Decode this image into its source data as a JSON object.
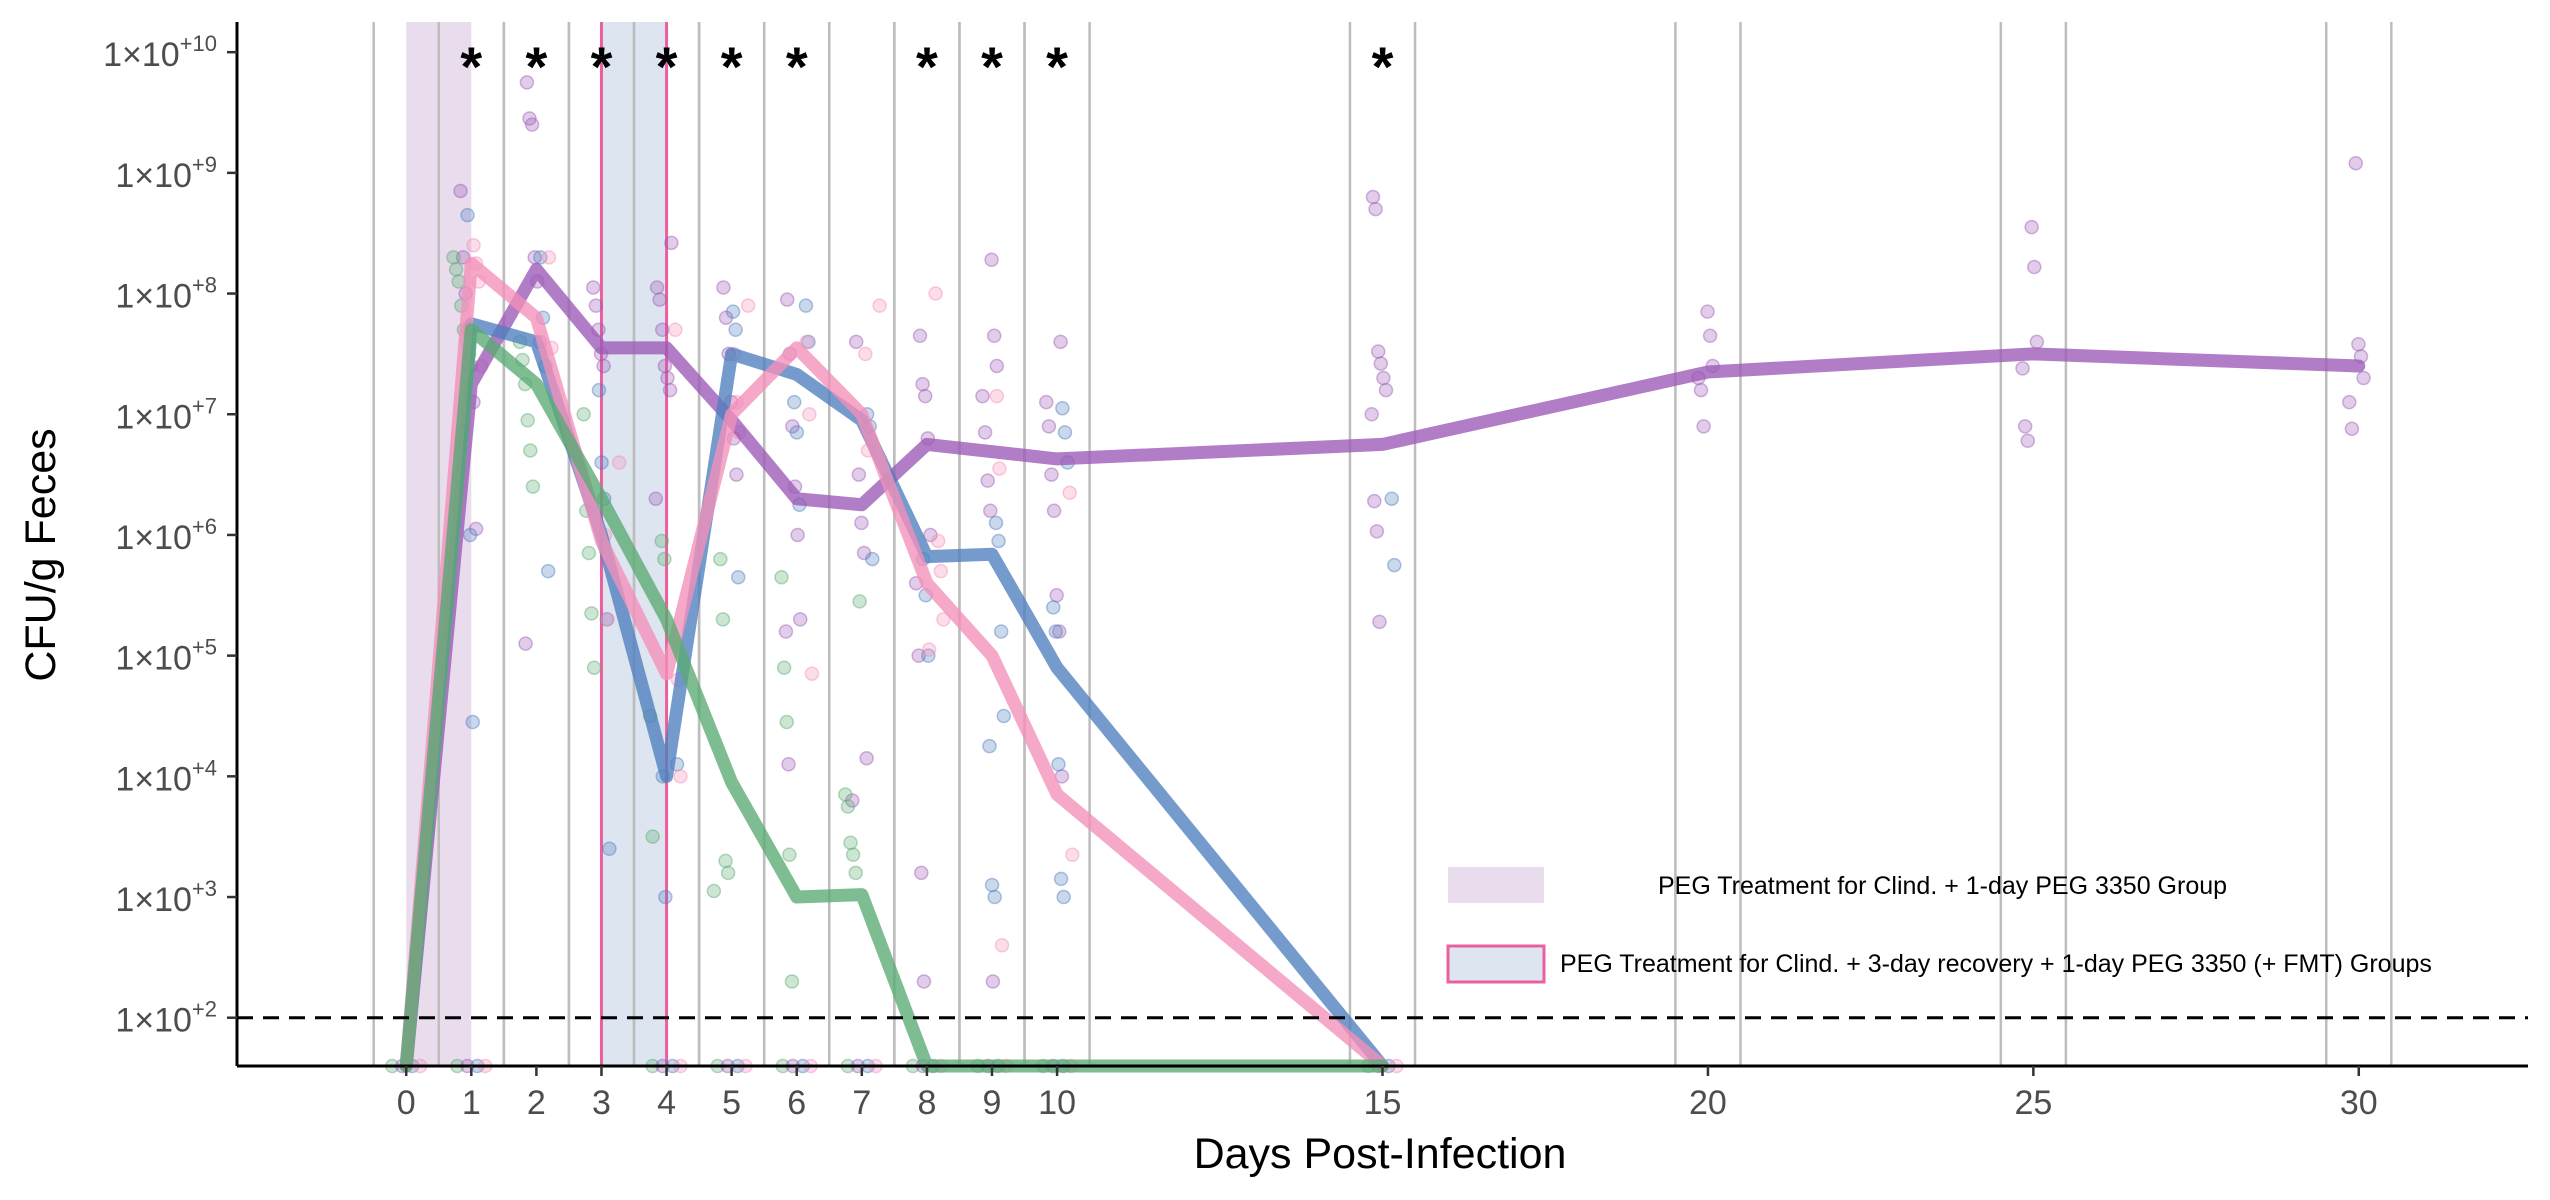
{
  "chart_data": {
    "type": "line",
    "xlabel": "Days Post-Infection",
    "ylabel": "CFU/g Feces",
    "xlim": [
      -2.6,
      32.6
    ],
    "ylim": [
      1.6,
      10.25
    ],
    "y_scale": "log10",
    "x_ticks": [
      0,
      1,
      2,
      3,
      4,
      5,
      6,
      7,
      8,
      9,
      10,
      15,
      20,
      25,
      30
    ],
    "y_ticks": [
      {
        "value": 10,
        "label": "1×10",
        "exp": "+10"
      },
      {
        "value": 9,
        "label": "1×10",
        "exp": "+9"
      },
      {
        "value": 8,
        "label": "1×10",
        "exp": "+8"
      },
      {
        "value": 7,
        "label": "1×10",
        "exp": "+7"
      },
      {
        "value": 6,
        "label": "1×10",
        "exp": "+6"
      },
      {
        "value": 5,
        "label": "1×10",
        "exp": "+5"
      },
      {
        "value": 4,
        "label": "1×10",
        "exp": "+4"
      },
      {
        "value": 3,
        "label": "1×10",
        "exp": "+3"
      },
      {
        "value": 2,
        "label": "1×10",
        "exp": "+2"
      }
    ],
    "limit_of_detection": 2,
    "grid": false,
    "sampling_day_boundaries": [
      0,
      1,
      2,
      3,
      4,
      5,
      6,
      7,
      8,
      9,
      10,
      15,
      20,
      25,
      30
    ],
    "shaded_regions": [
      {
        "from": 0,
        "to": 1,
        "color": "#e8dced",
        "border": "none"
      },
      {
        "from": 3,
        "to": 4,
        "color": "#dde5f0",
        "border": "#ec5f9e"
      }
    ],
    "significance_marks": [
      {
        "x": 1,
        "text": "*"
      },
      {
        "x": 2,
        "text": "*"
      },
      {
        "x": 3,
        "text": "*"
      },
      {
        "x": 4,
        "text": "*"
      },
      {
        "x": 5,
        "text": "*"
      },
      {
        "x": 6,
        "text": "*"
      },
      {
        "x": 8,
        "text": "*"
      },
      {
        "x": 9,
        "text": "*"
      },
      {
        "x": 10,
        "text": "*"
      },
      {
        "x": 15,
        "text": "*"
      }
    ],
    "legend": {
      "placement": "bottom-right",
      "entries": [
        {
          "label": "PEG Treatment for Clind. + 1-day PEG 3350 Group",
          "fill": "#e8dced",
          "border": "none"
        },
        {
          "label": "PEG Treatment for Clind. + 3-day recovery + 1-day PEG 3350 (+ FMT) Groups",
          "fill": "#dde5f0",
          "border": "#ec5f9e"
        }
      ]
    },
    "series": [
      {
        "color": "#9b59b6",
        "x": [
          0,
          1,
          2,
          3,
          4,
          5,
          6,
          7,
          8,
          10,
          15,
          20,
          25,
          30
        ],
        "y": [
          1.6,
          7.25,
          8.2,
          7.55,
          7.55,
          6.95,
          6.3,
          6.25,
          6.75,
          6.63,
          6.75,
          7.35,
          7.5,
          7.4
        ]
      },
      {
        "color": "#4e7fbf",
        "x": [
          0,
          1,
          2,
          3,
          4,
          5,
          6,
          7,
          8,
          9,
          10,
          15
        ],
        "y": [
          1.6,
          7.75,
          7.6,
          6.0,
          4.0,
          7.5,
          7.33,
          6.95,
          5.82,
          5.84,
          4.9,
          1.6
        ]
      },
      {
        "color": "#f48fb8",
        "x": [
          0,
          1,
          2,
          3,
          4,
          5,
          6,
          7,
          8,
          9,
          10,
          15
        ],
        "y": [
          1.6,
          8.25,
          7.8,
          5.95,
          4.85,
          7.0,
          7.55,
          7.0,
          5.6,
          5.0,
          3.85,
          1.6
        ]
      },
      {
        "color": "#5aab72",
        "x": [
          0,
          1,
          2,
          3,
          4,
          5,
          6,
          7,
          8,
          15
        ],
        "y": [
          1.6,
          7.7,
          7.25,
          6.3,
          5.3,
          3.95,
          3.0,
          3.02,
          1.6,
          1.6
        ]
      }
    ],
    "points": {
      "purple": [
        [
          1,
          8.85
        ],
        [
          1,
          8.3
        ],
        [
          1,
          8.0
        ],
        [
          1,
          7.7
        ],
        [
          1,
          7.4
        ],
        [
          1,
          7.1
        ],
        [
          1,
          6.05
        ],
        [
          2,
          9.75
        ],
        [
          2,
          9.45
        ],
        [
          2,
          9.4
        ],
        [
          2,
          8.3
        ],
        [
          2,
          8.1
        ],
        [
          2,
          7.6
        ],
        [
          2,
          5.1
        ],
        [
          3,
          8.05
        ],
        [
          3,
          7.9
        ],
        [
          3,
          7.7
        ],
        [
          3,
          7.5
        ],
        [
          3,
          7.4
        ],
        [
          4,
          8.42
        ],
        [
          4,
          8.05
        ],
        [
          4,
          7.95
        ],
        [
          4,
          7.7
        ],
        [
          4,
          7.4
        ],
        [
          4,
          7.3
        ],
        [
          4,
          7.2
        ],
        [
          4,
          6.3
        ],
        [
          5,
          8.05
        ],
        [
          5,
          7.8
        ],
        [
          5,
          7.5
        ],
        [
          5,
          7.1
        ],
        [
          5,
          6.8
        ],
        [
          5,
          6.5
        ],
        [
          6,
          7.95
        ],
        [
          6,
          7.5
        ],
        [
          6,
          6.9
        ],
        [
          6,
          6.4
        ],
        [
          6,
          6.0
        ],
        [
          6,
          5.3
        ],
        [
          6,
          5.2
        ],
        [
          6,
          4.1
        ],
        [
          7,
          7.6
        ],
        [
          7,
          6.5
        ],
        [
          7,
          6.1
        ],
        [
          7,
          5.85
        ],
        [
          7,
          4.15
        ],
        [
          7,
          3.8
        ],
        [
          8,
          7.65
        ],
        [
          8,
          7.25
        ],
        [
          8,
          7.15
        ],
        [
          8,
          6.8
        ],
        [
          8,
          6.0
        ],
        [
          8,
          5.6
        ],
        [
          8,
          5.0
        ],
        [
          8,
          3.2
        ],
        [
          8,
          2.3
        ],
        [
          9,
          8.28
        ],
        [
          9,
          7.65
        ],
        [
          9,
          7.4
        ],
        [
          9,
          7.15
        ],
        [
          9,
          6.85
        ],
        [
          9,
          6.45
        ],
        [
          9,
          6.2
        ],
        [
          9,
          2.3
        ],
        [
          10,
          7.6
        ],
        [
          10,
          7.1
        ],
        [
          10,
          6.9
        ],
        [
          10,
          6.5
        ],
        [
          10,
          6.2
        ],
        [
          10,
          5.5
        ],
        [
          10,
          5.2
        ],
        [
          10,
          4.0
        ],
        [
          15,
          8.8
        ],
        [
          15,
          8.7
        ],
        [
          15,
          7.52
        ],
        [
          15,
          7.42
        ],
        [
          15,
          7.3
        ],
        [
          15,
          7.2
        ],
        [
          15,
          7.0
        ],
        [
          15,
          6.28
        ],
        [
          15,
          6.03
        ],
        [
          15,
          5.28
        ],
        [
          20,
          7.85
        ],
        [
          20,
          7.65
        ],
        [
          20,
          7.4
        ],
        [
          20,
          7.3
        ],
        [
          20,
          7.2
        ],
        [
          20,
          6.9
        ],
        [
          25,
          8.55
        ],
        [
          25,
          8.22
        ],
        [
          25,
          7.6
        ],
        [
          25,
          7.38
        ],
        [
          25,
          6.9
        ],
        [
          25,
          6.78
        ],
        [
          30,
          9.08
        ],
        [
          30,
          7.58
        ],
        [
          30,
          7.48
        ],
        [
          30,
          7.3
        ],
        [
          30,
          7.1
        ],
        [
          30,
          6.88
        ]
      ],
      "blue": [
        [
          1,
          8.65
        ],
        [
          1,
          6.0
        ],
        [
          1,
          4.45
        ],
        [
          2,
          8.3
        ],
        [
          2,
          7.8
        ],
        [
          2,
          7.4
        ],
        [
          2,
          5.7
        ],
        [
          3,
          7.2
        ],
        [
          3,
          6.6
        ],
        [
          3,
          6.3
        ],
        [
          3,
          5.3
        ],
        [
          3,
          3.4
        ],
        [
          4,
          4.1
        ],
        [
          4,
          4.0
        ],
        [
          4,
          3.0
        ],
        [
          5,
          7.85
        ],
        [
          5,
          7.7
        ],
        [
          5,
          5.65
        ],
        [
          6,
          7.9
        ],
        [
          6,
          7.6
        ],
        [
          6,
          7.1
        ],
        [
          6,
          6.85
        ],
        [
          6,
          6.25
        ],
        [
          7,
          7.0
        ],
        [
          7,
          6.9
        ],
        [
          7,
          5.8
        ],
        [
          8,
          5.8
        ],
        [
          8,
          5.5
        ],
        [
          8,
          5.0
        ],
        [
          9,
          6.1
        ],
        [
          9,
          5.95
        ],
        [
          9,
          5.2
        ],
        [
          9,
          4.5
        ],
        [
          9,
          4.25
        ],
        [
          9,
          3.1
        ],
        [
          9,
          3.0
        ],
        [
          10,
          7.05
        ],
        [
          10,
          6.85
        ],
        [
          10,
          6.6
        ],
        [
          10,
          5.4
        ],
        [
          10,
          5.2
        ],
        [
          10,
          4.1
        ],
        [
          10,
          3.15
        ],
        [
          10,
          3.0
        ],
        [
          15,
          6.3
        ],
        [
          15,
          5.75
        ]
      ],
      "pink": [
        [
          1,
          8.4
        ],
        [
          1,
          8.25
        ],
        [
          1,
          8.1
        ],
        [
          1,
          7.4
        ],
        [
          2,
          8.3
        ],
        [
          2,
          7.55
        ],
        [
          3,
          6.6
        ],
        [
          3,
          6.0
        ],
        [
          3,
          5.3
        ],
        [
          4,
          7.7
        ],
        [
          4,
          4.8
        ],
        [
          4,
          4.0
        ],
        [
          5,
          7.9
        ],
        [
          5,
          7.5
        ],
        [
          5,
          7.1
        ],
        [
          5,
          6.85
        ],
        [
          6,
          7.6
        ],
        [
          6,
          7.0
        ],
        [
          6,
          4.85
        ],
        [
          7,
          7.9
        ],
        [
          7,
          7.5
        ],
        [
          7,
          6.7
        ],
        [
          8,
          8.0
        ],
        [
          8,
          5.95
        ],
        [
          8,
          5.7
        ],
        [
          8,
          5.3
        ],
        [
          8,
          5.05
        ],
        [
          9,
          7.15
        ],
        [
          9,
          6.55
        ],
        [
          9,
          2.6
        ],
        [
          10,
          6.35
        ],
        [
          10,
          3.35
        ]
      ],
      "green": [
        [
          1,
          8.3
        ],
        [
          1,
          8.2
        ],
        [
          1,
          8.1
        ],
        [
          1,
          7.9
        ],
        [
          1,
          7.7
        ],
        [
          1,
          7.6
        ],
        [
          1,
          7.5
        ],
        [
          2,
          7.6
        ],
        [
          2,
          7.45
        ],
        [
          2,
          7.25
        ],
        [
          2,
          6.95
        ],
        [
          2,
          6.7
        ],
        [
          2,
          6.4
        ],
        [
          3,
          7.0
        ],
        [
          3,
          6.2
        ],
        [
          3,
          5.85
        ],
        [
          3,
          5.35
        ],
        [
          3,
          4.9
        ],
        [
          4,
          5.95
        ],
        [
          4,
          5.8
        ],
        [
          4,
          4.5
        ],
        [
          4,
          3.5
        ],
        [
          5,
          5.8
        ],
        [
          5,
          5.3
        ],
        [
          5,
          3.3
        ],
        [
          5,
          3.2
        ],
        [
          5,
          3.05
        ],
        [
          6,
          5.65
        ],
        [
          6,
          4.9
        ],
        [
          6,
          4.45
        ],
        [
          6,
          3.35
        ],
        [
          6,
          2.3
        ],
        [
          7,
          5.45
        ],
        [
          7,
          3.85
        ],
        [
          7,
          3.75
        ],
        [
          7,
          3.45
        ],
        [
          7,
          3.35
        ],
        [
          7,
          3.2
        ]
      ],
      "floor": [
        0,
        1,
        4,
        5,
        6,
        7,
        8,
        9,
        10,
        15
      ]
    }
  }
}
